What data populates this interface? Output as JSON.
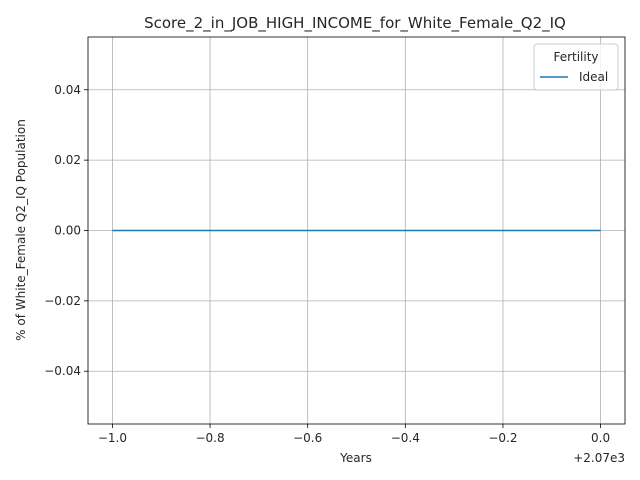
{
  "chart_data": {
    "type": "line",
    "title": "Score_2_in_JOB_HIGH_INCOME_for_White_Female_Q2_IQ",
    "xlabel": "Years",
    "ylabel": "% of White_Female Q2_IQ Population",
    "x_offset_label": "+2.07e3",
    "x": [
      2069,
      2070
    ],
    "series": [
      {
        "name": "Ideal",
        "values": [
          0,
          0
        ],
        "color": "#1f77b4"
      }
    ],
    "xlim": [
      2068.95,
      2070.05
    ],
    "ylim": [
      -0.055,
      0.055
    ],
    "x_ticks": [
      2069,
      2069.2,
      2069.4,
      2069.6,
      2069.8,
      2070
    ],
    "x_tick_labels": [
      "−1.0",
      "−0.8",
      "−0.6",
      "−0.4",
      "−0.2",
      "0.0"
    ],
    "y_ticks": [
      -0.04,
      -0.02,
      0,
      0.02,
      0.04
    ],
    "y_tick_labels": [
      "−0.04",
      "−0.02",
      "0.00",
      "0.02",
      "0.04"
    ],
    "grid": true,
    "legend": {
      "title": "Fertility",
      "placement": "top-right"
    }
  }
}
